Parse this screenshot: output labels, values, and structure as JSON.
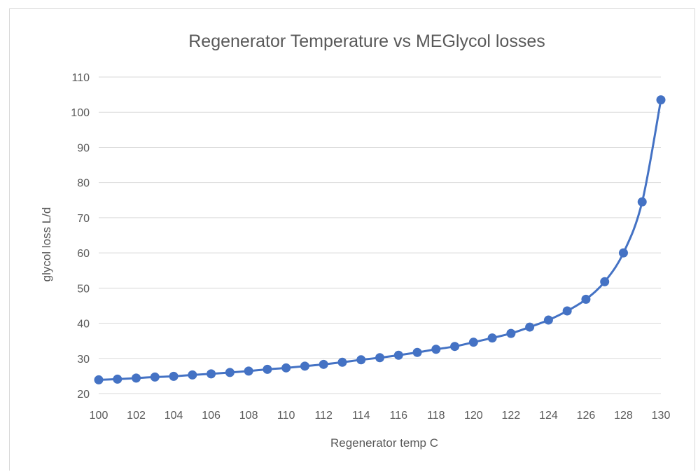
{
  "chart_data": {
    "type": "line",
    "title": "Regenerator Temperature vs MEGlycol losses",
    "xlabel": "Regenerator temp C",
    "ylabel": "glycol loss L/d",
    "xlim": [
      100,
      130
    ],
    "ylim": [
      20,
      110
    ],
    "x_ticks": [
      "100",
      "102",
      "104",
      "106",
      "108",
      "110",
      "112",
      "114",
      "116",
      "118",
      "120",
      "122",
      "124",
      "126",
      "128",
      "130"
    ],
    "y_ticks": [
      "20",
      "30",
      "40",
      "50",
      "60",
      "70",
      "80",
      "90",
      "100",
      "110"
    ],
    "grid": true,
    "legend": "none",
    "series": [
      {
        "color": "#4472c4",
        "marker": "circle",
        "x": [
          100,
          101,
          102,
          103,
          104,
          105,
          106,
          107,
          108,
          109,
          110,
          111,
          112,
          113,
          114,
          115,
          116,
          117,
          118,
          119,
          120,
          121,
          122,
          123,
          124,
          125,
          126,
          127,
          128,
          129,
          130
        ],
        "values": [
          23.9,
          24.1,
          24.4,
          24.7,
          24.9,
          25.3,
          25.6,
          26.0,
          26.4,
          26.9,
          27.3,
          27.8,
          28.3,
          28.9,
          29.6,
          30.2,
          30.9,
          31.7,
          32.6,
          33.4,
          34.6,
          35.8,
          37.1,
          38.9,
          40.9,
          43.5,
          46.8,
          51.8,
          60.0,
          74.5,
          103.5
        ]
      }
    ]
  }
}
